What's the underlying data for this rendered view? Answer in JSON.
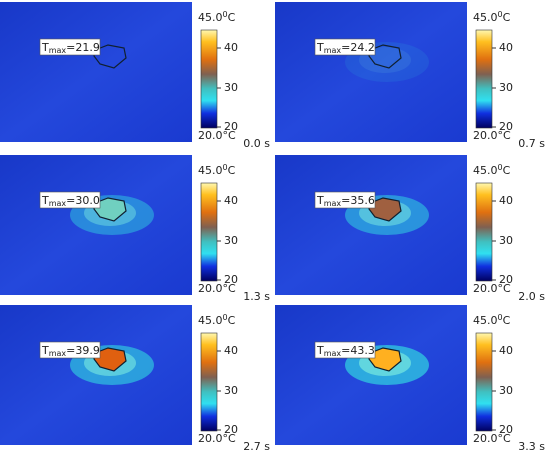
{
  "legend": {
    "top_value": "45.0",
    "top_superscript": "0",
    "top_unit": "C",
    "ticks": [
      "40",
      "30",
      "20"
    ],
    "bottom": "20.0°C"
  },
  "label": {
    "symbol": "T",
    "subscript": "max",
    "equals": "="
  },
  "panels": [
    {
      "tmax": "21.9",
      "time": "0.0 s"
    },
    {
      "tmax": "24.2",
      "time": "0.7 s"
    },
    {
      "tmax": "30.0",
      "time": "1.3 s"
    },
    {
      "tmax": "35.6",
      "time": "2.0 s"
    },
    {
      "tmax": "39.9",
      "time": "2.7 s"
    },
    {
      "tmax": "43.3",
      "time": "3.3 s"
    }
  ]
}
